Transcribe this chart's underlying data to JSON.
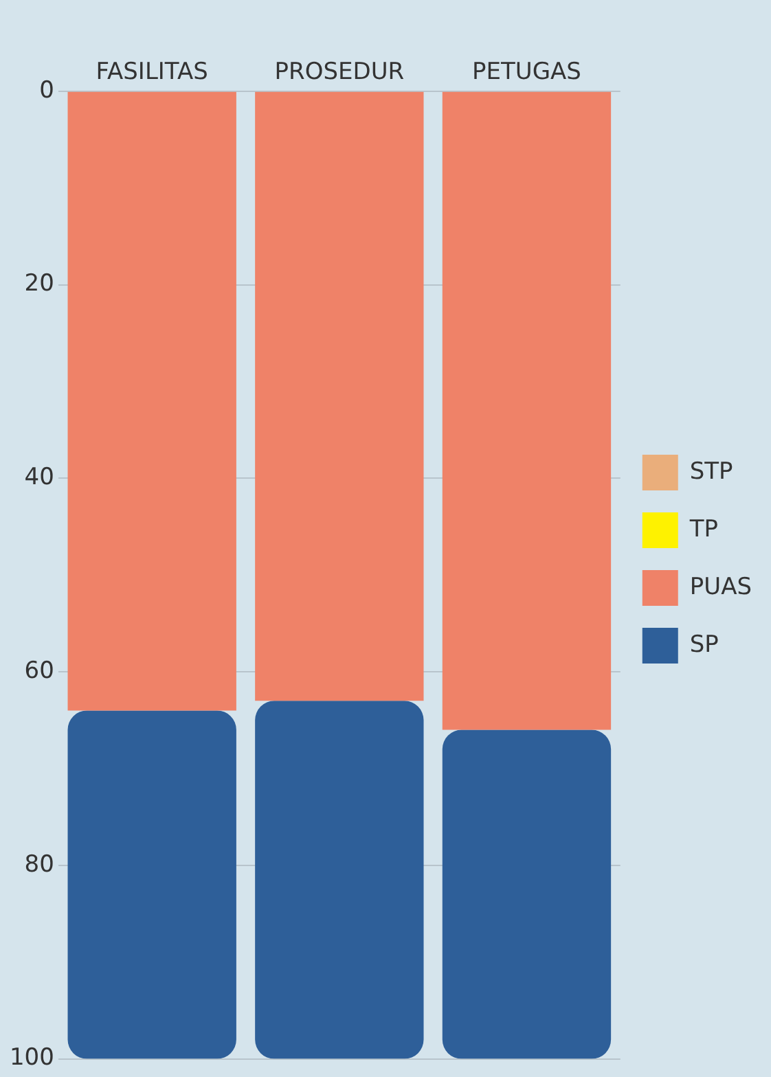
{
  "chart_data": {
    "type": "bar",
    "stacked": true,
    "categories": [
      "FASILITAS",
      "PROSEDUR",
      "PETUGAS"
    ],
    "series": [
      {
        "name": "STP",
        "color": "#eaae7b",
        "values": [
          0,
          0,
          0
        ]
      },
      {
        "name": "TP",
        "color": "#fef200",
        "values": [
          0,
          0,
          0
        ]
      },
      {
        "name": "PUAS",
        "color": "#ef8268",
        "values": [
          64,
          63,
          66
        ]
      },
      {
        "name": "SP",
        "color": "#2e5f99",
        "values": [
          36,
          37,
          34
        ]
      }
    ],
    "ylim": [
      100,
      0
    ],
    "yticks": [
      0,
      20,
      40,
      60,
      80,
      100
    ],
    "grid": "y",
    "legend": "right"
  }
}
